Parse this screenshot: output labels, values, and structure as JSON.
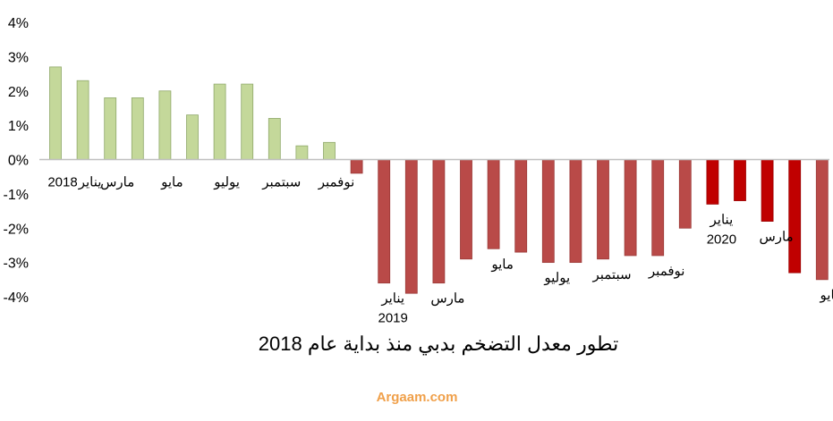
{
  "chart_data": {
    "type": "bar",
    "title": "تطور معدل التضخم بدبي منذ بداية عام 2018",
    "ylim": [
      -4,
      4
    ],
    "yticks": [
      "-4%",
      "-3%",
      "-2%",
      "-1%",
      "0%",
      "1%",
      "2%",
      "3%",
      "4%"
    ],
    "grid": false,
    "values": [
      2.7,
      2.3,
      1.8,
      1.8,
      2.0,
      1.3,
      2.2,
      2.2,
      1.2,
      0.4,
      0.5,
      -0.4,
      -3.6,
      -3.9,
      -3.6,
      -2.9,
      -2.6,
      -2.7,
      -3.0,
      -3.0,
      -2.9,
      -2.8,
      -2.8,
      -2.0,
      -1.3,
      -1.2,
      -1.8,
      -3.3,
      -3.5
    ],
    "colors": {
      "positive": "#c4d89a",
      "negative": "#b94a48",
      "latest": "#c00000"
    },
    "category_labels": [
      {
        "index": 0,
        "lines": [
          "2018"
        ]
      },
      {
        "index": 1,
        "lines": [
          "يناير"
        ]
      },
      {
        "index": 2,
        "lines": [
          "مارس"
        ]
      },
      {
        "index": 4,
        "lines": [
          "مايو"
        ]
      },
      {
        "index": 6,
        "lines": [
          "يوليو"
        ]
      },
      {
        "index": 8,
        "lines": [
          "سبتمبر"
        ]
      },
      {
        "index": 10,
        "lines": [
          "نوفمبر"
        ]
      },
      {
        "index": 12,
        "lines": [
          "يناير",
          "2019"
        ]
      },
      {
        "index": 14,
        "lines": [
          "مارس"
        ]
      },
      {
        "index": 16,
        "lines": [
          "مايو"
        ]
      },
      {
        "index": 18,
        "lines": [
          "يوليو"
        ]
      },
      {
        "index": 20,
        "lines": [
          "سبتمبر"
        ]
      },
      {
        "index": 22,
        "lines": [
          "نوفمبر"
        ]
      },
      {
        "index": 24,
        "lines": [
          "يناير",
          "2020"
        ]
      },
      {
        "index": 26,
        "lines": [
          "مارس"
        ]
      },
      {
        "index": 28,
        "lines": [
          "مايو"
        ]
      }
    ]
  },
  "watermark": "Argaam.com"
}
